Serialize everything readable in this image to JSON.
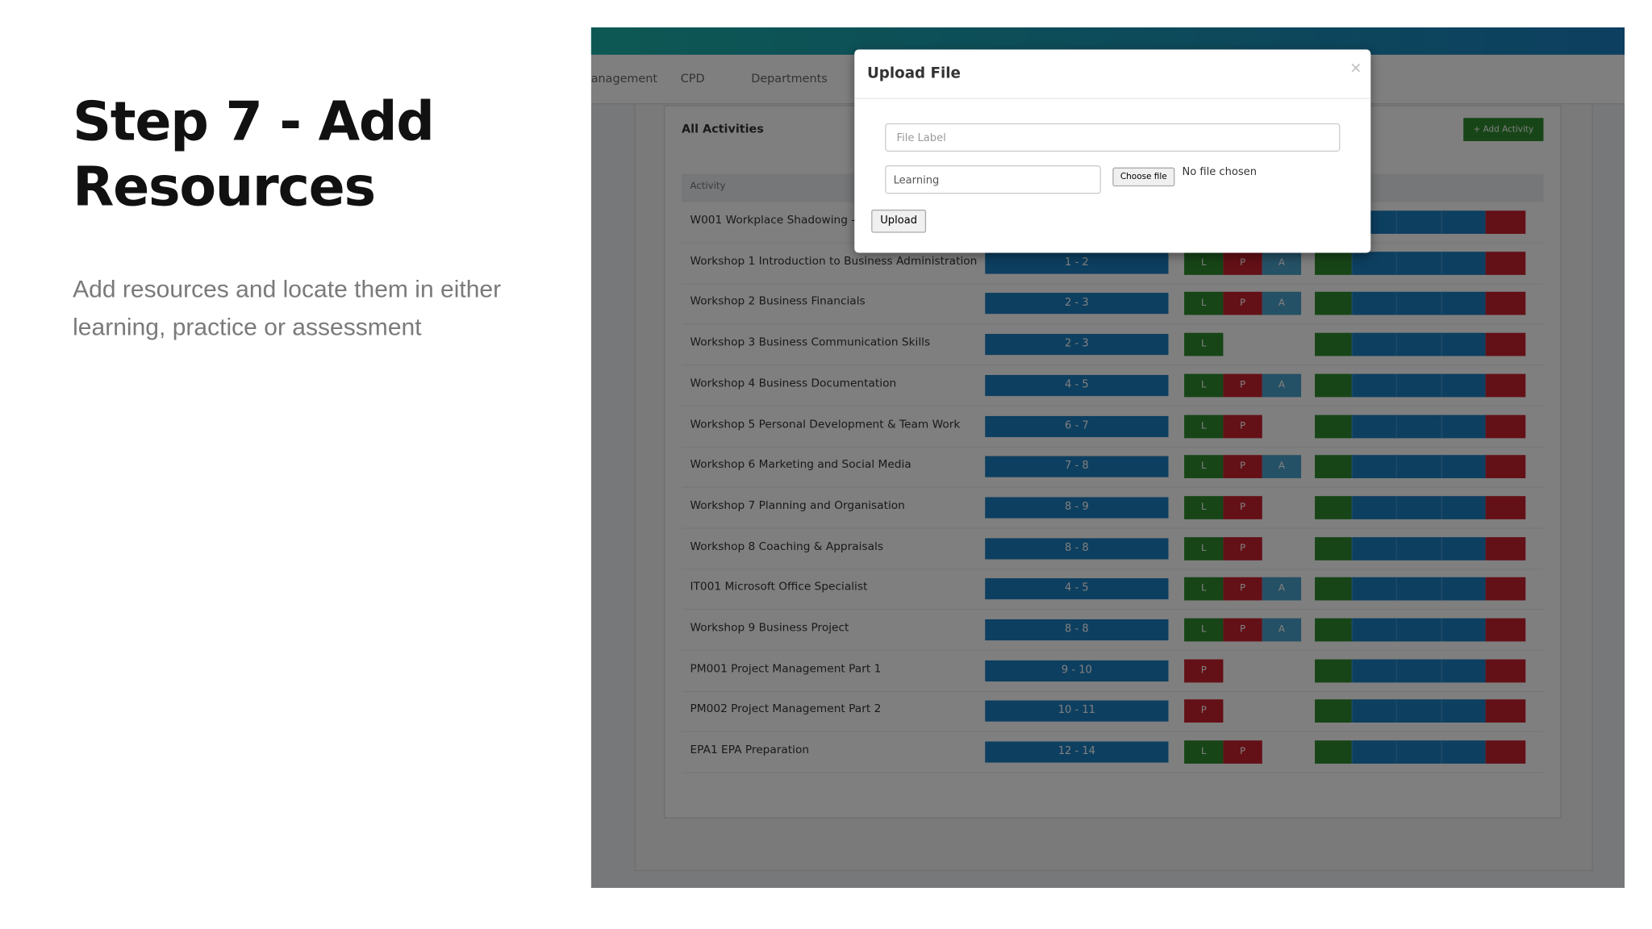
{
  "slide": {
    "title": "Step 7 - Add Resources",
    "description": "Add resources and locate them in either learning, practice or assessment"
  },
  "app": {
    "nav": [
      "anagement",
      "CPD",
      "Departments"
    ],
    "panel_title": "All Activities",
    "add_button": "+ Add Activity",
    "table": {
      "header": "Activity",
      "rows": [
        {
          "name": "W001 Workplace Shadowing -"
        },
        {
          "name": "Workshop 1 Introduction to Business Administration",
          "weeks": "1 - 2",
          "resources": [
            "L",
            "P",
            "A"
          ]
        },
        {
          "name": "Workshop 2 Business Financials",
          "weeks": "2 - 3",
          "resources": [
            "L",
            "P",
            "A"
          ]
        },
        {
          "name": "Workshop 3 Business Communication Skills",
          "weeks": "2 - 3",
          "resources": [
            "L"
          ]
        },
        {
          "name": "Workshop 4 Business Documentation",
          "weeks": "4 - 5",
          "resources": [
            "L",
            "P",
            "A"
          ]
        },
        {
          "name": "Workshop 5 Personal Development & Team Work",
          "weeks": "6 - 7",
          "resources": [
            "L",
            "P"
          ]
        },
        {
          "name": "Workshop 6 Marketing and Social Media",
          "weeks": "7 - 8",
          "resources": [
            "L",
            "P",
            "A"
          ]
        },
        {
          "name": "Workshop 7 Planning and Organisation",
          "weeks": "8 - 9",
          "resources": [
            "L",
            "P"
          ]
        },
        {
          "name": "Workshop 8 Coaching & Appraisals",
          "weeks": "8 - 8",
          "resources": [
            "L",
            "P"
          ]
        },
        {
          "name": "IT001 Microsoft Office Specialist",
          "weeks": "4 - 5",
          "resources": [
            "L",
            "P",
            "A"
          ]
        },
        {
          "name": "Workshop 9 Business Project",
          "weeks": "8 - 8",
          "resources": [
            "L",
            "P",
            "A"
          ]
        },
        {
          "name": "PM001 Project Management Part 1",
          "weeks": "9 - 10",
          "resources": [
            "P"
          ]
        },
        {
          "name": "PM002 Project Management Part 2",
          "weeks": "10 - 11",
          "resources": [
            "P"
          ]
        },
        {
          "name": "EPA1 EPA Preparation",
          "weeks": "12 - 14",
          "resources": [
            "L",
            "P"
          ]
        }
      ]
    }
  },
  "modal": {
    "title": "Upload File",
    "close": "×",
    "label_placeholder": "File Label",
    "select": "Learning",
    "choose_file": "Choose file",
    "no_file": "No file chosen",
    "upload": "Upload"
  }
}
